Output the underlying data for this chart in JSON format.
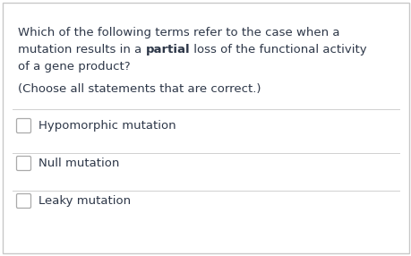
{
  "bg_color": "#ffffff",
  "border_color": "#c8c8c8",
  "text_color": "#2d3748",
  "divider_color": "#d0d0d0",
  "checkbox_color": "#ffffff",
  "checkbox_border": "#aaaaaa",
  "line1": "Which of the following terms refer to the case when a",
  "line2_pre": "mutation results in a ",
  "line2_bold": "partial",
  "line2_post": " loss of the functional activity",
  "line3": "of a gene product?",
  "subtext": "(Choose all statements that are correct.)",
  "options": [
    "Hypomorphic mutation",
    "Null mutation",
    "Leaky mutation"
  ],
  "font_size": 9.5,
  "figsize": [
    4.6,
    2.86
  ],
  "dpi": 100
}
